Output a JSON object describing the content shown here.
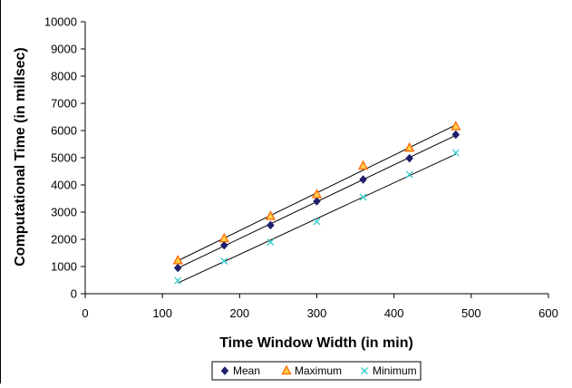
{
  "chart_data": {
    "type": "scatter",
    "title": "",
    "xlabel": "Time Window Width (in min)",
    "ylabel": "Computational Time (in millsec)",
    "xlim": [
      0,
      600
    ],
    "ylim": [
      0,
      10000
    ],
    "x_ticks": [
      0,
      100,
      200,
      300,
      400,
      500,
      600
    ],
    "y_ticks": [
      0,
      1000,
      2000,
      3000,
      4000,
      5000,
      6000,
      7000,
      8000,
      9000,
      10000
    ],
    "grid": false,
    "trendlines": "linear fit per series",
    "legend": {
      "placement": "bottom-center",
      "entries": [
        "Mean",
        "Maximum",
        "Minimum"
      ]
    },
    "x": [
      120,
      180,
      240,
      300,
      360,
      420,
      480
    ],
    "series": [
      {
        "name": "Mean",
        "marker": "diamond",
        "color": "#1f1f6e",
        "values": [
          950,
          1780,
          2520,
          3400,
          4200,
          4980,
          5850
        ]
      },
      {
        "name": "Maximum",
        "marker": "triangle",
        "color": "#ff6600",
        "fill": "#ffd24d",
        "values": [
          1220,
          2030,
          2850,
          3650,
          4700,
          5360,
          6150
        ]
      },
      {
        "name": "Minimum",
        "marker": "x",
        "color": "#33cccc",
        "values": [
          480,
          1200,
          1900,
          2650,
          3550,
          4380,
          5180
        ]
      }
    ]
  }
}
